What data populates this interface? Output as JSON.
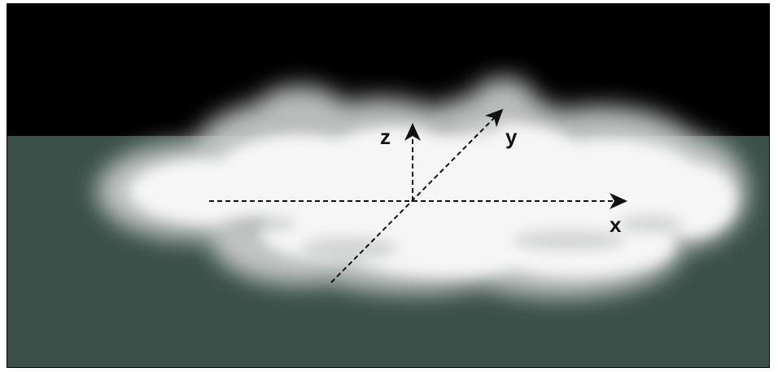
{
  "colors": {
    "sky": "#000000",
    "ground": "#3b5049",
    "cloud": "#f4f4f4",
    "axes": "#111111"
  },
  "axes": {
    "x_label": "x",
    "y_label": "y",
    "z_label": "z"
  }
}
